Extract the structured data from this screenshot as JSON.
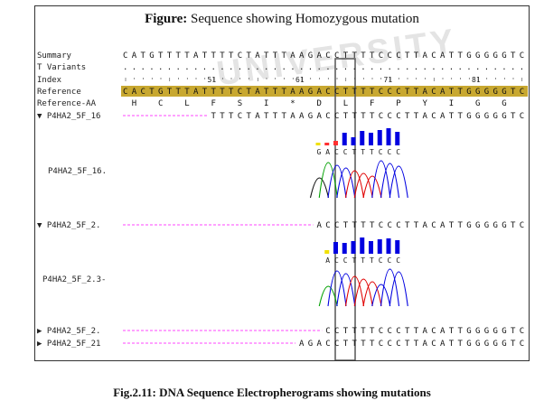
{
  "figure": {
    "title_label": "Figure:",
    "title_text": "Sequence showing Homozygous mutation",
    "watermark": "UNIVERSITY"
  },
  "rows": {
    "summary": {
      "label": "Summary",
      "seq": "CATGTTTTATTTTCTATTTAAGACCTTTTCCCTTACATTGGGGGTC"
    },
    "variants": {
      "label": "T Variants",
      "seq": "................................................"
    },
    "index": {
      "label": "Index",
      "ticks": [
        "51",
        "61",
        "71",
        "81"
      ]
    },
    "reference": {
      "label": "Reference",
      "seq": "CACTGTTTATTTTCTATTTAAGACCTTTTCCCTTACATTGGGGGTC"
    },
    "reference_aa": {
      "label": "Reference-AA",
      "aa": [
        "H",
        "C",
        "L",
        "F",
        "S",
        "I",
        "*",
        "D",
        "L",
        "F",
        "P",
        "Y",
        "I",
        "G",
        "G"
      ]
    }
  },
  "tracks": [
    {
      "label": "▼ P4HA2_5F_16",
      "seq": "TTTCTATTTAAGACCTTTTCCCTTACATTGGGGGTC",
      "trace_label": "P4HA2_5F_16.",
      "trace_bases": "GACCTTTCCC"
    },
    {
      "label": "▼ P4HA2_5F_2.",
      "seq": "ACCTTTTCCCTTACATTGGGGGTC",
      "trace_label": "P4HA2_5F_2.3-",
      "trace_bases": "ACCTTTCCC"
    },
    {
      "label": "▶ P4HA2_5F_2.",
      "seq": "CCTTTTCCCTTACATTGGGGGTC"
    },
    {
      "label": "▶ P4HA2_5F_21",
      "seq": "AGACCTTTTCCCTTACATTGGGGGTC"
    }
  ],
  "caption": "Fig.2.11: DNA Sequence Electropherograms showing mutations",
  "colors": {
    "highlight": "#c8a830",
    "green": "#00a000",
    "red": "#e00000",
    "blue": "#0000e0",
    "black": "#111111",
    "yellow": "#f0e000",
    "magenta": "#ff44ff"
  }
}
